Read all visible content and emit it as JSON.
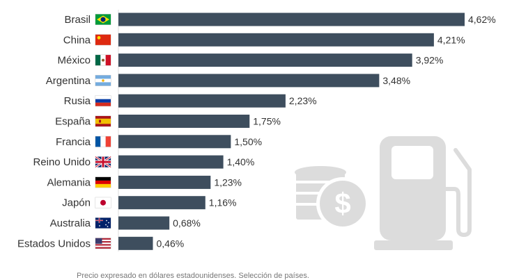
{
  "chart_data": {
    "type": "bar",
    "orientation": "horizontal",
    "categories": [
      "Brasil",
      "China",
      "México",
      "Argentina",
      "Rusia",
      "España",
      "Francia",
      "Reino Unido",
      "Alemania",
      "Japón",
      "Australia",
      "Estados Unidos"
    ],
    "values": [
      4.62,
      4.21,
      3.92,
      3.48,
      2.23,
      1.75,
      1.5,
      1.4,
      1.23,
      1.16,
      0.68,
      0.46
    ],
    "value_labels": [
      "4,62%",
      "4,21%",
      "3,92%",
      "3,48%",
      "2,23%",
      "1,75%",
      "1,50%",
      "1,40%",
      "1,23%",
      "1,16%",
      "0,68%",
      "0,46%"
    ],
    "flags": [
      "brazil-flag",
      "china-flag",
      "mexico-flag",
      "argentina-flag",
      "russia-flag",
      "spain-flag",
      "france-flag",
      "uk-flag",
      "germany-flag",
      "japan-flag",
      "australia-flag",
      "usa-flag"
    ],
    "xlim": [
      0,
      4.62
    ],
    "grid": false,
    "legend": "none",
    "bar_color": "#3e4e5e"
  },
  "decorations": {
    "icons": [
      "coins-dollar-icon",
      "fuel-pump-icon"
    ],
    "icon_color": "#dcdcdc"
  },
  "footnote": "Precio expresado en dólares estadounidenses. Selección de países."
}
